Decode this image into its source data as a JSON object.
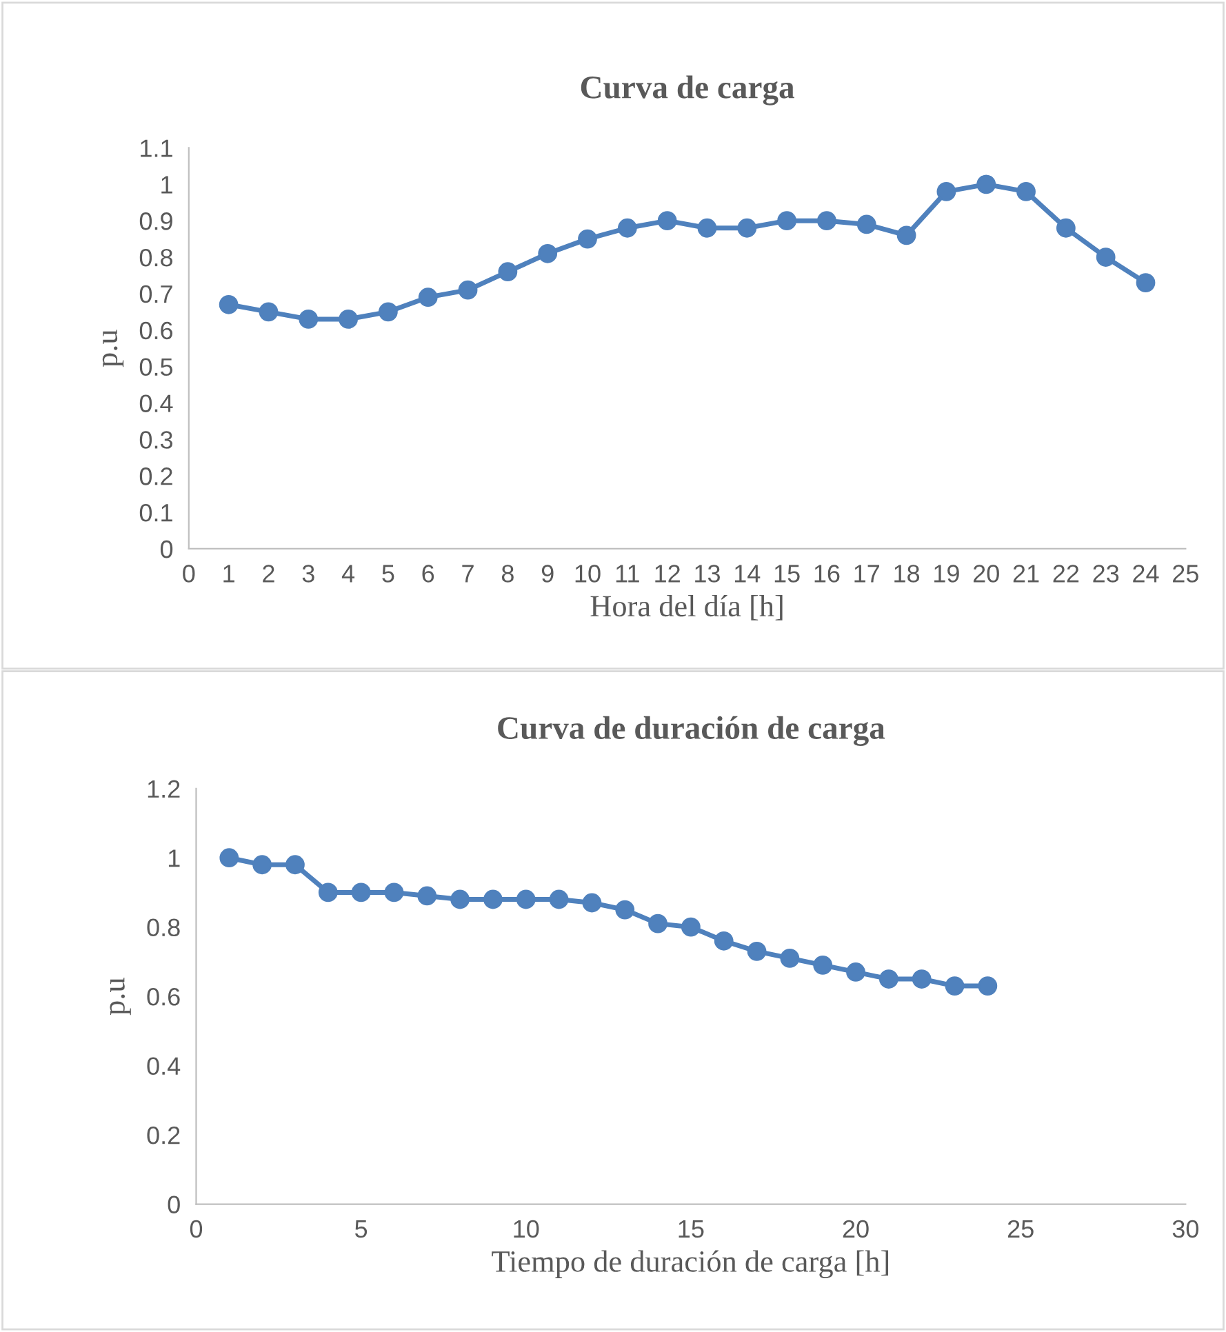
{
  "chart_data": [
    {
      "type": "line",
      "title": "Curva de carga",
      "xlabel": "Hora del día [h]",
      "ylabel": "p.u",
      "x": [
        1,
        2,
        3,
        4,
        5,
        6,
        7,
        8,
        9,
        10,
        11,
        12,
        13,
        14,
        15,
        16,
        17,
        18,
        19,
        20,
        21,
        22,
        23,
        24
      ],
      "series": [
        {
          "color": "#4f81bd",
          "values": [
            0.67,
            0.65,
            0.63,
            0.63,
            0.65,
            0.69,
            0.71,
            0.76,
            0.81,
            0.85,
            0.88,
            0.9,
            0.88,
            0.88,
            0.9,
            0.9,
            0.89,
            0.86,
            0.98,
            1.0,
            0.98,
            0.88,
            0.8,
            0.73
          ]
        }
      ],
      "xlim": [
        0,
        25
      ],
      "xticks": [
        0,
        1,
        2,
        3,
        4,
        5,
        6,
        7,
        8,
        9,
        10,
        11,
        12,
        13,
        14,
        15,
        16,
        17,
        18,
        19,
        20,
        21,
        22,
        23,
        24,
        25
      ],
      "ylim": [
        0,
        1.1
      ],
      "yticks": [
        0,
        0.1,
        0.2,
        0.3,
        0.4,
        0.5,
        0.6,
        0.7,
        0.8,
        0.9,
        1,
        1.1
      ],
      "grid": false,
      "marker": "circle",
      "line_style": "solid"
    },
    {
      "type": "line",
      "title": "Curva de duración de carga",
      "xlabel": "Tiempo de duración de carga [h]",
      "ylabel": "p.u",
      "x": [
        1,
        2,
        3,
        4,
        5,
        6,
        7,
        8,
        9,
        10,
        11,
        12,
        13,
        14,
        15,
        16,
        17,
        18,
        19,
        20,
        21,
        22,
        23,
        24
      ],
      "series": [
        {
          "color": "#4f81bd",
          "values": [
            1.0,
            0.98,
            0.98,
            0.9,
            0.9,
            0.9,
            0.89,
            0.88,
            0.88,
            0.88,
            0.88,
            0.87,
            0.85,
            0.81,
            0.8,
            0.76,
            0.73,
            0.71,
            0.69,
            0.67,
            0.65,
            0.65,
            0.63,
            0.63
          ]
        }
      ],
      "xlim": [
        0,
        30
      ],
      "xticks": [
        0,
        5,
        10,
        15,
        20,
        25,
        30
      ],
      "ylim": [
        0,
        1.2
      ],
      "yticks": [
        0,
        0.2,
        0.4,
        0.6,
        0.8,
        1,
        1.2
      ],
      "grid": false,
      "marker": "circle",
      "line_style": "solid"
    }
  ]
}
